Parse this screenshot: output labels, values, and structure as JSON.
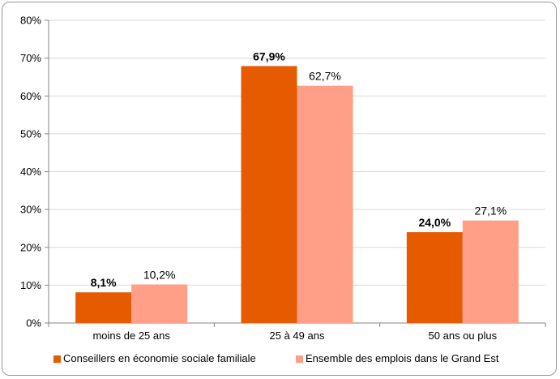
{
  "chart_data": {
    "type": "bar",
    "title": "",
    "xlabel": "",
    "ylabel": "",
    "categories": [
      "moins de 25 ans",
      "25 à 49 ans",
      "50 ans ou plus"
    ],
    "ylim": [
      0,
      80
    ],
    "yticks": [
      0,
      10,
      20,
      30,
      40,
      50,
      60,
      70,
      80
    ],
    "ytick_labels": [
      "0%",
      "10%",
      "20%",
      "30%",
      "40%",
      "50%",
      "60%",
      "70%",
      "80%"
    ],
    "grid": true,
    "legend_position": "bottom",
    "series": [
      {
        "name": "Conseillers en économie sociale familiale",
        "color": "#E65A00",
        "values": [
          8.1,
          67.9,
          24.0
        ],
        "labels": [
          "8,1%",
          "67,9%",
          "24,0%"
        ],
        "label_bold": true
      },
      {
        "name": "Ensemble des emplois dans le Grand Est",
        "color": "#FF9F87",
        "values": [
          10.2,
          62.7,
          27.1
        ],
        "labels": [
          "10,2%",
          "62,7%",
          "27,1%"
        ],
        "label_bold": false
      }
    ]
  }
}
